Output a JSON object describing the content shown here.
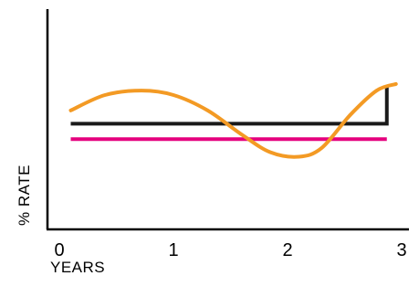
{
  "chart_data": {
    "type": "line",
    "title": "",
    "xlabel": "YEARS",
    "ylabel": "% RATE",
    "xlim": [
      0,
      3
    ],
    "ylim": [
      0,
      100
    ],
    "x_ticks": [
      0,
      1,
      2,
      3
    ],
    "y_ticks": [],
    "grid": false,
    "legend": "none",
    "series": [
      {
        "color": "#e5007e",
        "line_style": "solid",
        "x": [
          0.1,
          2.87
        ],
        "y": [
          41,
          41
        ]
      },
      {
        "color": "#1a1a1a",
        "line_style": "step",
        "x": [
          0.1,
          2.87,
          2.87
        ],
        "y": [
          48,
          48,
          65
        ]
      },
      {
        "color": "#f39a24",
        "line_style": "smooth",
        "x": [
          0.1,
          0.4,
          0.72,
          1.0,
          1.3,
          1.6,
          1.85,
          2.1,
          2.3,
          2.55,
          2.78,
          2.95
        ],
        "y": [
          54,
          61,
          63,
          61,
          54,
          43,
          35,
          33,
          37,
          52,
          63,
          66
        ]
      }
    ]
  }
}
